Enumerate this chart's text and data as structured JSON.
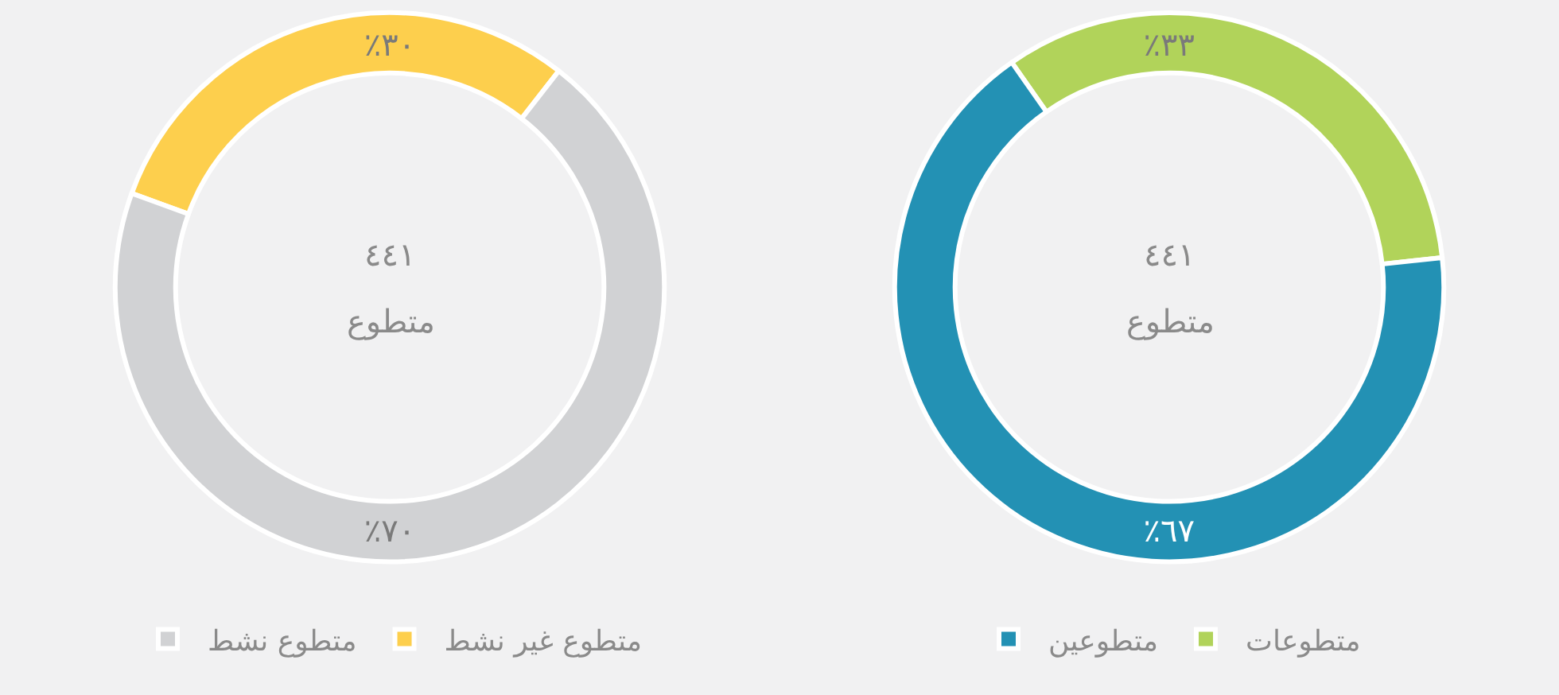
{
  "chart_data": [
    {
      "type": "donut",
      "categories": [
        "متطوع غير نشط",
        "متطوع نشط"
      ],
      "values": [
        30,
        70
      ],
      "colors": [
        "#fdcf4d",
        "#d1d2d4"
      ],
      "value_labels": [
        "٪٣٠",
        "٪٧٠"
      ],
      "annotations": [
        "٤٤١",
        "متطوع"
      ],
      "legend": "bottom"
    },
    {
      "type": "donut",
      "categories": [
        "متطوعات",
        "متطوعين"
      ],
      "values": [
        33,
        67
      ],
      "colors": [
        "#b1d35a",
        "#2391b4"
      ],
      "value_labels": [
        "٪٣٣",
        "٪٦٧"
      ],
      "annotations": [
        "٤٤١",
        "متطوع"
      ],
      "legend": "bottom"
    }
  ]
}
